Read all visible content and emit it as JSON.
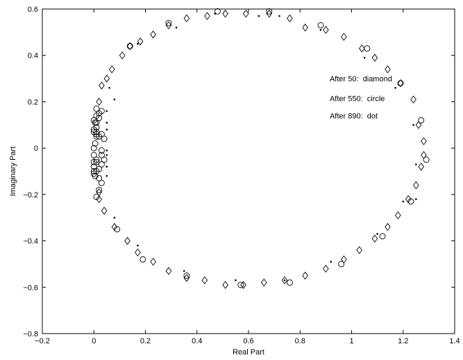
{
  "chart_data": {
    "type": "scatter",
    "title": "",
    "xlabel": "Real Part",
    "ylabel": "Imaginary Part",
    "xlim": [
      -0.2,
      1.4
    ],
    "ylim": [
      -0.8,
      0.6
    ],
    "xticks": [
      -0.2,
      0,
      0.2,
      0.4,
      0.6,
      0.8,
      1,
      1.2,
      1.4
    ],
    "yticks": [
      -0.8,
      -0.6,
      -0.4,
      -0.2,
      0,
      0.2,
      0.4,
      0.6
    ],
    "xtick_labels": [
      "−0.2",
      "0",
      "0.2",
      "0.4",
      "0.6",
      "0.8",
      "1",
      "1.2",
      "1.4"
    ],
    "ytick_labels": [
      "−0.8",
      "−0.6",
      "−0.4",
      "−0.2",
      "0",
      "0.2",
      "0.4",
      "0.6"
    ],
    "grid": false,
    "annotations": [
      "After 50:  diamond",
      "After 550:  circle",
      "After 890:  dot"
    ],
    "series": [
      {
        "marker": "diamond",
        "x": [
          0.02,
          0.02,
          0.03,
          0.05,
          0.07,
          0.11,
          0.14,
          0.18,
          0.23,
          0.29,
          0.36,
          0.44,
          0.51,
          0.59,
          0.68,
          0.76,
          0.82,
          0.9,
          0.97,
          1.04,
          1.09,
          1.14,
          1.19,
          1.24,
          1.26,
          1.28,
          1.28,
          1.27,
          1.25,
          1.22,
          1.18,
          1.14,
          1.09,
          1.03,
          0.97,
          0.9,
          0.82,
          0.74,
          0.66,
          0.58,
          0.51,
          0.43,
          0.36,
          0.29,
          0.23,
          0.17,
          0.13,
          0.08,
          0.04,
          0.02
        ],
        "y": [
          0.2,
          -0.19,
          0.27,
          0.3,
          0.34,
          0.4,
          0.44,
          0.46,
          0.49,
          0.53,
          0.56,
          0.57,
          0.58,
          0.58,
          0.58,
          0.56,
          0.52,
          0.51,
          0.48,
          0.43,
          0.39,
          0.34,
          0.28,
          0.21,
          0.1,
          0.03,
          -0.03,
          -0.08,
          -0.16,
          -0.22,
          -0.29,
          -0.34,
          -0.39,
          -0.44,
          -0.48,
          -0.52,
          -0.55,
          -0.57,
          -0.58,
          -0.59,
          -0.59,
          -0.57,
          -0.56,
          -0.53,
          -0.49,
          -0.45,
          -0.4,
          -0.34,
          -0.27,
          -0.22
        ]
      },
      {
        "marker": "circle",
        "x": [
          0.0,
          0.005,
          0.01,
          0.01,
          0.01,
          0.01,
          0.02,
          0.02,
          0.03,
          0.0,
          0.005,
          0.01,
          0.01,
          0.02,
          0.03,
          0.04,
          0.03,
          0.03,
          0.04,
          0.03,
          0.01,
          0.02,
          0.01,
          0.005,
          0.0,
          0.02,
          0.03,
          0.0,
          0.0,
          0.02,
          0.01,
          0.0,
          0.0,
          0.0,
          0.0,
          0.01,
          0.01,
          0.09,
          0.14,
          0.29,
          0.48,
          0.68,
          0.88,
          1.06,
          1.19,
          1.27,
          1.29,
          1.23,
          1.12,
          0.96,
          0.76,
          0.57,
          0.36,
          0.19
        ],
        "y": [
          0.0,
          0.02,
          0.05,
          0.07,
          0.09,
          0.11,
          0.13,
          0.15,
          0.16,
          0.08,
          0.11,
          0.14,
          0.17,
          0.05,
          0.06,
          0.04,
          -0.01,
          -0.03,
          -0.05,
          -0.07,
          -0.06,
          -0.09,
          -0.1,
          -0.12,
          -0.06,
          -0.13,
          -0.15,
          0.12,
          -0.08,
          -0.18,
          -0.21,
          -0.1,
          -0.11,
          0.07,
          -0.03,
          0.06,
          -0.05,
          -0.35,
          0.44,
          0.54,
          0.59,
          0.59,
          0.53,
          0.43,
          0.28,
          0.12,
          -0.05,
          -0.23,
          -0.38,
          -0.5,
          -0.58,
          -0.59,
          -0.55,
          -0.48
        ]
      },
      {
        "marker": "dot",
        "x": [
          0.05,
          0.05,
          0.05,
          0.05,
          0.06,
          0.05,
          0.05,
          0.05,
          0.08,
          0.17,
          0.32,
          0.47,
          0.64,
          0.72,
          0.88,
          1.05,
          1.17,
          1.24,
          1.25,
          1.25,
          1.2,
          1.1,
          0.92,
          0.74,
          0.55,
          0.35,
          0.17,
          0.08
        ],
        "y": [
          0.16,
          0.08,
          -0.01,
          -0.08,
          0.26,
          0.11,
          -0.03,
          -0.12,
          -0.3,
          0.45,
          0.52,
          0.58,
          0.57,
          0.57,
          0.51,
          0.39,
          0.26,
          0.1,
          -0.07,
          -0.22,
          -0.23,
          -0.37,
          -0.49,
          -0.57,
          -0.57,
          -0.53,
          -0.42,
          0.21
        ]
      }
    ]
  }
}
